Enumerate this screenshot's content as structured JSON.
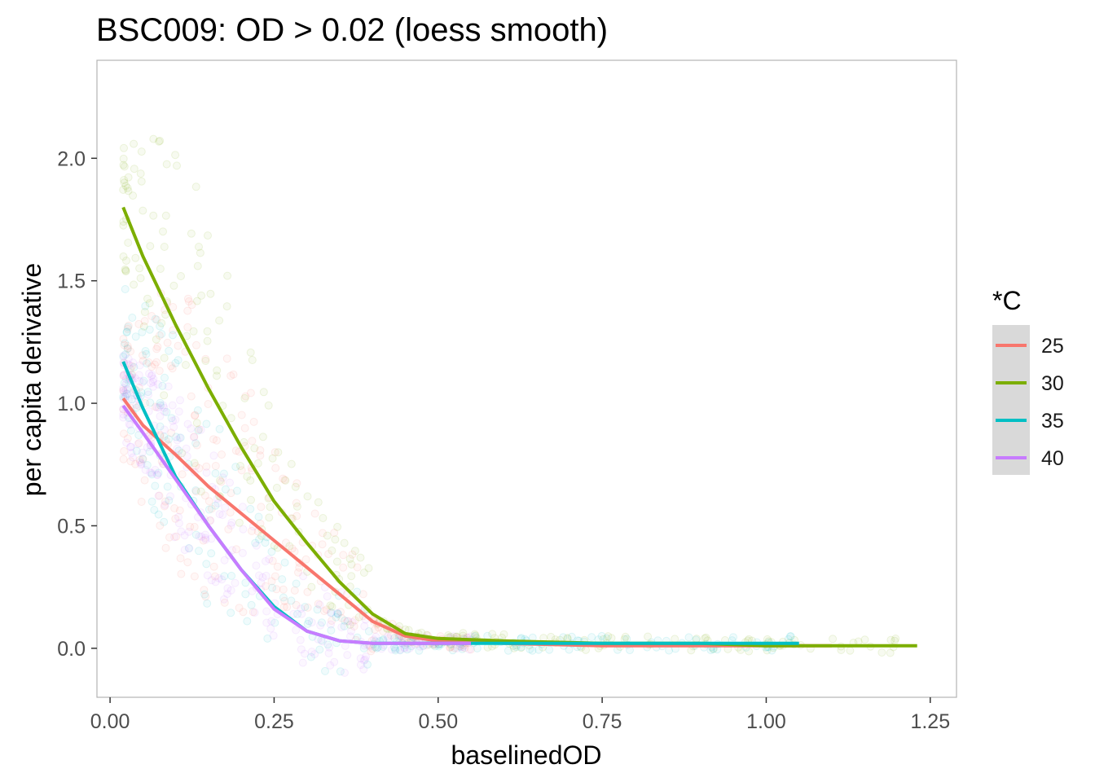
{
  "chart_data": {
    "type": "scatter",
    "title": "BSC009: OD > 0.02 (loess smooth)",
    "xlabel": "baselinedOD",
    "ylabel": "per capita derivative",
    "xlim": [
      -0.02,
      1.29
    ],
    "ylim": [
      -0.2,
      2.4
    ],
    "x_ticks": [
      0.0,
      0.25,
      0.5,
      0.75,
      1.0,
      1.25
    ],
    "x_tick_labels": [
      "0.00",
      "0.25",
      "0.50",
      "0.75",
      "1.00",
      "1.25"
    ],
    "y_ticks": [
      0.0,
      0.5,
      1.0,
      1.5,
      2.0
    ],
    "y_tick_labels": [
      "0.0",
      "0.5",
      "1.0",
      "1.5",
      "2.0"
    ],
    "grid": false,
    "legend": {
      "title": "*C",
      "position": "right",
      "entries": [
        "25",
        "30",
        "35",
        "40"
      ]
    },
    "series": [
      {
        "name": "25",
        "color": "#F8766D",
        "smooth": {
          "x": [
            0.02,
            0.05,
            0.1,
            0.15,
            0.2,
            0.25,
            0.3,
            0.35,
            0.4,
            0.45,
            0.5,
            0.6,
            0.75,
            0.9,
            1.0,
            1.1
          ],
          "y": [
            1.02,
            0.91,
            0.79,
            0.66,
            0.55,
            0.44,
            0.33,
            0.22,
            0.11,
            0.05,
            0.03,
            0.02,
            0.01,
            0.01,
            0.01,
            0.01
          ]
        },
        "points_cloud": {
          "x_range": [
            0.02,
            0.55
          ],
          "peak_x": 0.12,
          "peak_y": 1.6
        }
      },
      {
        "name": "30",
        "color": "#7CAE00",
        "smooth": {
          "x": [
            0.02,
            0.05,
            0.1,
            0.15,
            0.2,
            0.25,
            0.3,
            0.35,
            0.4,
            0.45,
            0.5,
            0.6,
            0.75,
            0.9,
            1.0,
            1.1,
            1.23
          ],
          "y": [
            1.8,
            1.6,
            1.32,
            1.06,
            0.82,
            0.6,
            0.43,
            0.27,
            0.14,
            0.06,
            0.04,
            0.03,
            0.02,
            0.02,
            0.01,
            0.01,
            0.01
          ]
        },
        "points_cloud": {
          "x_range": [
            0.02,
            1.23
          ],
          "peak_x": 0.08,
          "peak_y": 2.2
        }
      },
      {
        "name": "35",
        "color": "#00BFC4",
        "smooth": {
          "x": [
            0.02,
            0.05,
            0.1,
            0.15,
            0.2,
            0.25,
            0.3,
            0.35,
            0.4,
            0.5,
            0.75,
            1.0,
            1.05
          ],
          "y": [
            1.17,
            0.98,
            0.7,
            0.5,
            0.32,
            0.17,
            0.07,
            0.03,
            0.02,
            0.02,
            0.02,
            0.02,
            0.02
          ]
        },
        "points_cloud": {
          "x_range": [
            0.02,
            1.05
          ],
          "peak_x": 0.06,
          "peak_y": 1.35
        }
      },
      {
        "name": "40",
        "color": "#C77CFF",
        "smooth": {
          "x": [
            0.02,
            0.05,
            0.1,
            0.15,
            0.2,
            0.25,
            0.3,
            0.35,
            0.4,
            0.45,
            0.55
          ],
          "y": [
            0.99,
            0.88,
            0.69,
            0.5,
            0.32,
            0.16,
            0.07,
            0.03,
            0.02,
            0.02,
            0.02
          ]
        },
        "points_cloud": {
          "x_range": [
            0.02,
            0.55
          ],
          "peak_x": 0.05,
          "peak_y": 1.0
        }
      }
    ]
  }
}
